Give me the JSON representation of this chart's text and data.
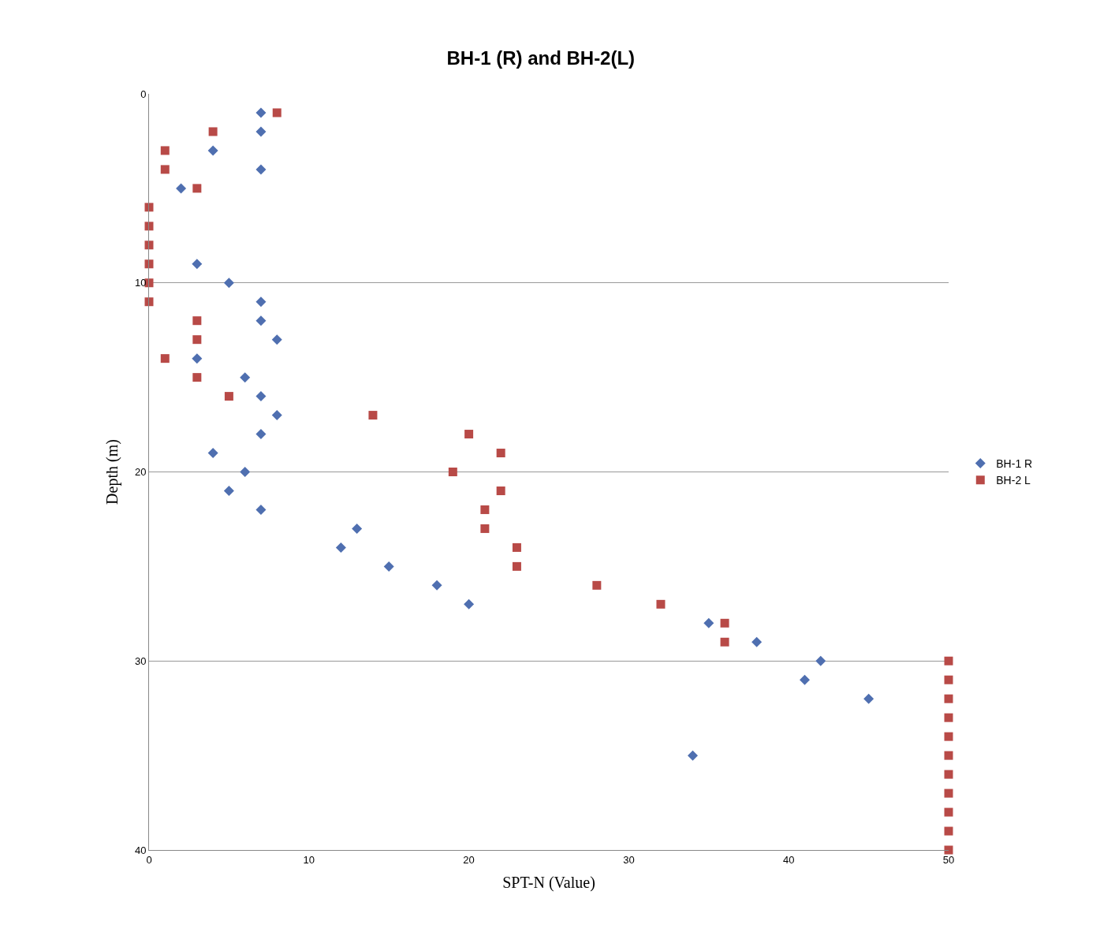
{
  "chart_data": {
    "type": "scatter",
    "title": "BH-1 (R) and BH-2(L)",
    "xlabel": "SPT-N (Value)",
    "ylabel": "Depth (m)",
    "xlim": [
      0,
      50
    ],
    "xticks": [
      0,
      10,
      20,
      30,
      40,
      50
    ],
    "ylim": [
      40,
      0
    ],
    "yticks": [
      0,
      10,
      20,
      30,
      40
    ],
    "grid": "y",
    "legend": "right",
    "series": [
      {
        "name": "BH-1 R",
        "color": "#4f6fb0",
        "marker": "diamond",
        "x": [
          7,
          7,
          4,
          7,
          2,
          3,
          5,
          7,
          7,
          8,
          3,
          6,
          7,
          8,
          7,
          4,
          6,
          5,
          7,
          13,
          12,
          15,
          18,
          20,
          35,
          38,
          42,
          41,
          45,
          34
        ],
        "values": [
          1,
          2,
          3,
          4,
          5,
          9,
          10,
          11,
          12,
          13,
          14,
          15,
          16,
          17,
          18,
          19,
          20,
          21,
          22,
          23,
          24,
          25,
          26,
          27,
          28,
          29,
          30,
          31,
          32,
          35
        ]
      },
      {
        "name": "BH-2 L",
        "color": "#b84a47",
        "marker": "square",
        "x": [
          8,
          4,
          1,
          1,
          3,
          0,
          0,
          0,
          0,
          0,
          0,
          3,
          3,
          1,
          3,
          5,
          14,
          20,
          22,
          19,
          22,
          21,
          21,
          23,
          23,
          28,
          32,
          36,
          36,
          50,
          50,
          50,
          50,
          50,
          50,
          50,
          50,
          50,
          50,
          50
        ],
        "values": [
          1,
          2,
          3,
          4,
          5,
          6,
          7,
          8,
          9,
          10,
          11,
          12,
          13,
          14,
          15,
          16,
          17,
          18,
          19,
          20,
          21,
          22,
          23,
          24,
          25,
          26,
          27,
          28,
          29,
          30,
          31,
          32,
          33,
          34,
          35,
          36,
          37,
          38,
          39,
          40
        ]
      }
    ]
  }
}
